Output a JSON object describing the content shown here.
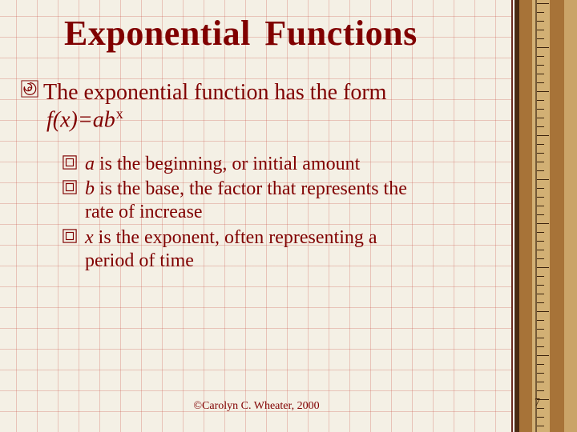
{
  "title": {
    "word1": "Exponential",
    "word2": "Functions"
  },
  "main": {
    "lead_text": "The exponential function has the form",
    "formula_base": "f(x)=ab",
    "formula_exp": "x"
  },
  "bullets": [
    {
      "var": "a",
      "text_after_var": " is the beginning, or initial amount"
    },
    {
      "var": "b",
      "text_after_var": " is the base, the factor that represents the",
      "continuation": "rate of increase"
    },
    {
      "var": "x",
      "text_after_var": " is the exponent, often representing a",
      "continuation": "period of time"
    }
  ],
  "footer": "©Carolyn C. Wheater, 2000",
  "page_number": "7",
  "colors": {
    "text": "#800000",
    "paper": "#f4f0e5",
    "grid": "rgba(200,80,70,.28)",
    "ruler_dark": "#4a2a12",
    "ruler_mid": "#a77338",
    "ruler_light": "#d2b074"
  }
}
